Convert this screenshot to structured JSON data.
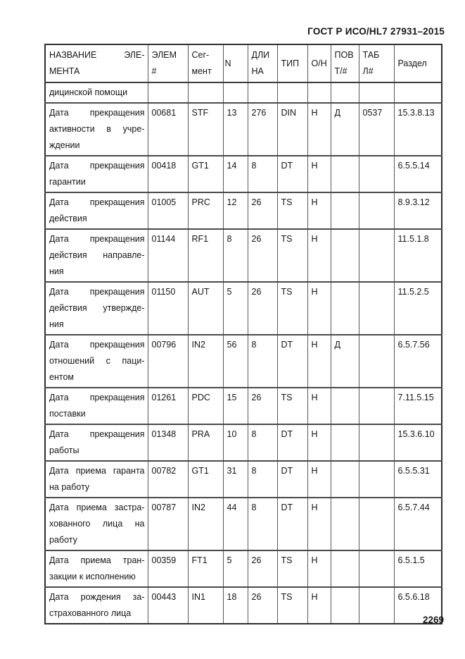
{
  "header": {
    "title": "ГОСТ Р ИСО/HL7 27931–2015"
  },
  "table": {
    "columns": [
      {
        "id": "name",
        "lines": [
          "НАЗВАНИЕ ЭЛЕ-",
          "МЕНТА"
        ],
        "justify": true
      },
      {
        "id": "elem",
        "lines": [
          "ЭЛЕМ",
          "#"
        ]
      },
      {
        "id": "segment",
        "lines": [
          "Сег-",
          "мент"
        ]
      },
      {
        "id": "n",
        "lines": [
          "N"
        ],
        "middle": true,
        "center": true
      },
      {
        "id": "length",
        "lines": [
          "ДЛИ",
          "НА"
        ]
      },
      {
        "id": "type",
        "lines": [
          "ТИП"
        ],
        "middle": true
      },
      {
        "id": "on",
        "lines": [
          "О/Н"
        ],
        "middle": true
      },
      {
        "id": "rep",
        "lines": [
          "ПОВ",
          "Т/#"
        ]
      },
      {
        "id": "tab",
        "lines": [
          "ТАБ",
          "Л#"
        ]
      },
      {
        "id": "section",
        "lines": [
          "Раздел"
        ],
        "middle": true
      }
    ],
    "rows": [
      {
        "name_lines": [
          "дицинской помощи"
        ],
        "cells": [
          "",
          "",
          "",
          "",
          "",
          "",
          "",
          "",
          ""
        ]
      },
      {
        "name_lines": [
          "Дата прекращения",
          "активности в учре-",
          "ждении"
        ],
        "cells": [
          "00681",
          "STF",
          "13",
          "276",
          "DIN",
          "Н",
          "Д",
          "0537",
          "15.3.8.13"
        ]
      },
      {
        "name_lines": [
          "Дата прекращения",
          "гарантии"
        ],
        "cells": [
          "00418",
          "GT1",
          "14",
          "8",
          "DT",
          "Н",
          "",
          "",
          "6.5.5.14"
        ]
      },
      {
        "name_lines": [
          "Дата прекращения",
          "действия"
        ],
        "cells": [
          "01005",
          "PRC",
          "12",
          "26",
          "TS",
          "Н",
          "",
          "",
          "8.9.3.12"
        ]
      },
      {
        "name_lines": [
          "Дата прекращения",
          "действия направле-",
          "ния"
        ],
        "cells": [
          "01144",
          "RF1",
          "8",
          "26",
          "TS",
          "Н",
          "",
          "",
          "11.5.1.8"
        ]
      },
      {
        "name_lines": [
          "Дата прекращения",
          "действия утвержде-",
          "ния"
        ],
        "cells": [
          "01150",
          "AUT",
          "5",
          "26",
          "TS",
          "Н",
          "",
          "",
          "11.5.2.5"
        ]
      },
      {
        "name_lines": [
          "Дата прекращения",
          "отношений с паци-",
          "ентом"
        ],
        "cells": [
          "00796",
          "IN2",
          "56",
          "8",
          "DT",
          "Н",
          "Д",
          "",
          "6.5.7.56"
        ]
      },
      {
        "name_lines": [
          "Дата прекращения",
          "поставки"
        ],
        "cells": [
          "01261",
          "PDC",
          "15",
          "26",
          "TS",
          "Н",
          "",
          "",
          "7.11.5.15"
        ]
      },
      {
        "name_lines": [
          "Дата прекращения",
          "работы"
        ],
        "cells": [
          "01348",
          "PRA",
          "10",
          "8",
          "DT",
          "Н",
          "",
          "",
          "15.3.6.10"
        ]
      },
      {
        "name_lines": [
          "Дата приема гаранта",
          "на работу"
        ],
        "cells": [
          "00782",
          "GT1",
          "31",
          "8",
          "DT",
          "Н",
          "",
          "",
          "6.5.5.31"
        ]
      },
      {
        "name_lines": [
          "Дата приема застра-",
          "хованного лица на",
          "работу"
        ],
        "cells": [
          "00787",
          "IN2",
          "44",
          "8",
          "DT",
          "Н",
          "",
          "",
          "6.5.7.44"
        ]
      },
      {
        "name_lines": [
          "Дата приема тран-",
          "закции к исполнению"
        ],
        "cells": [
          "00359",
          "FT1",
          "5",
          "26",
          "TS",
          "Н",
          "",
          "",
          "6.5.1.5"
        ]
      },
      {
        "name_lines": [
          "Дата рождения за-",
          "страхованного лица"
        ],
        "cells": [
          "00443",
          "IN1",
          "18",
          "26",
          "TS",
          "Н",
          "",
          "",
          "6.5.6.18"
        ]
      }
    ]
  },
  "footer": {
    "page_number": "2269"
  }
}
